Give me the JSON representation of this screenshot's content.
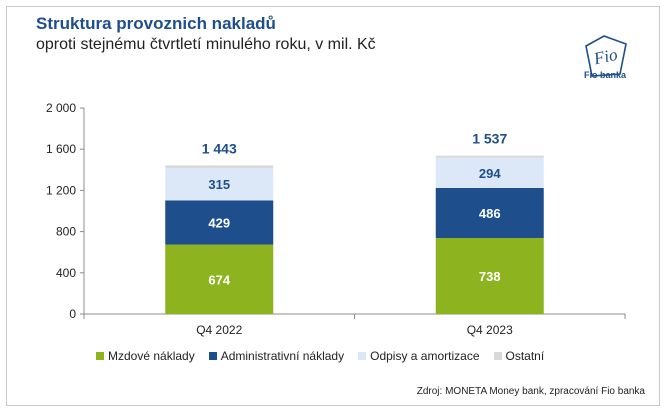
{
  "header": {
    "title": "Struktura provoznich nakladů",
    "subtitle": "oproti stejnému čtvrtletí minulého roku, v mil. Kč"
  },
  "logo": {
    "text": "Fio banka",
    "script": "Fio",
    "color": "#1f4e8c"
  },
  "source": "Zdroj: MONETA Money bank, zpracování Fio banka",
  "chart_data": {
    "type": "bar",
    "stacked": true,
    "categories": [
      "Q4 2022",
      "Q4 2023"
    ],
    "series": [
      {
        "name": "Mzdové náklady",
        "values": [
          674,
          738
        ],
        "color": "#8db31f"
      },
      {
        "name": "Administrativní náklady",
        "values": [
          429,
          486
        ],
        "color": "#1f4e8c"
      },
      {
        "name": "Odpisy a amortizace",
        "values": [
          315,
          294
        ],
        "color": "#dce8f7"
      },
      {
        "name": "Ostatní",
        "values": [
          25,
          19
        ],
        "color": "#d9d9d9"
      }
    ],
    "totals": [
      1443,
      1537
    ],
    "total_labels": [
      "1 443",
      "1 537"
    ],
    "segment_labels": [
      [
        "674",
        "429",
        "315"
      ],
      [
        "738",
        "486",
        "294"
      ]
    ],
    "ylim": [
      0,
      2000
    ],
    "yticks": [
      0,
      400,
      800,
      1200,
      1600,
      2000
    ],
    "ytick_labels": [
      "0",
      "400",
      "800",
      "1 200",
      "1 600",
      "2 000"
    ],
    "grid": false,
    "legend_position": "bottom"
  }
}
